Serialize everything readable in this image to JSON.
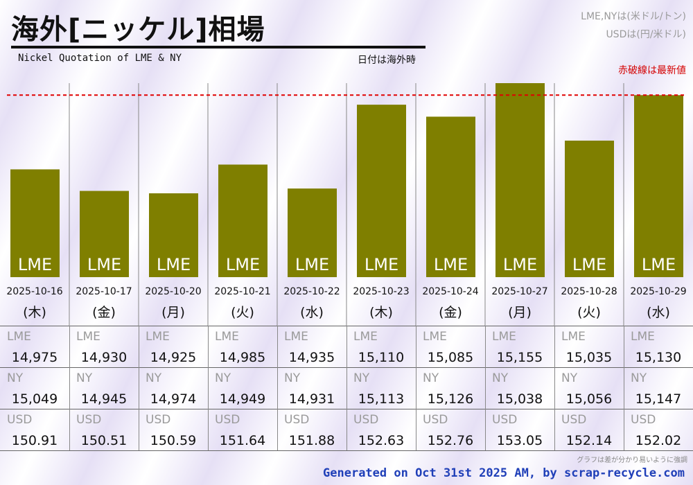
{
  "header": {
    "title": "海外[ニッケル]相場",
    "subtitle": "Nickel Quotation of LME & NY",
    "date_note": "日付は海外時",
    "unit_line1": "LME,NYは(米ドル/トン)",
    "unit_line2": "USDは(円/米ドル)",
    "red_line_legend": "赤破線は最新値"
  },
  "colors": {
    "bar": "#7f7f00",
    "red_line": "#e00000",
    "footer": "#1f3fb8"
  },
  "chart_data": {
    "type": "bar",
    "series_name": "LME",
    "categories": [
      "2025-10-16",
      "2025-10-17",
      "2025-10-20",
      "2025-10-21",
      "2025-10-22",
      "2025-10-23",
      "2025-10-24",
      "2025-10-27",
      "2025-10-28",
      "2025-10-29"
    ],
    "weekdays": [
      "(木)",
      "(金)",
      "(月)",
      "(火)",
      "(水)",
      "(木)",
      "(金)",
      "(月)",
      "(火)",
      "(水)"
    ],
    "values": [
      14975,
      14930,
      14925,
      14985,
      14935,
      15110,
      15085,
      15155,
      15035,
      15130
    ],
    "latest_value": 15130,
    "ylim": [
      14750,
      15155
    ]
  },
  "table": {
    "rows": [
      {
        "label": "LME",
        "values": [
          "14,975",
          "14,930",
          "14,925",
          "14,985",
          "14,935",
          "15,110",
          "15,085",
          "15,155",
          "15,035",
          "15,130"
        ]
      },
      {
        "label": "NY",
        "values": [
          "15,049",
          "14,945",
          "14,974",
          "14,949",
          "14,931",
          "15,113",
          "15,126",
          "15,038",
          "15,056",
          "15,147"
        ]
      },
      {
        "label": "USD",
        "values": [
          "150.91",
          "150.51",
          "150.59",
          "151.64",
          "151.88",
          "152.63",
          "152.76",
          "153.05",
          "152.14",
          "152.02"
        ]
      }
    ]
  },
  "footnote": "グラフは差が分かり易いように強調",
  "footer": "Generated on Oct 31st 2025 AM, by scrap-recycle.com"
}
